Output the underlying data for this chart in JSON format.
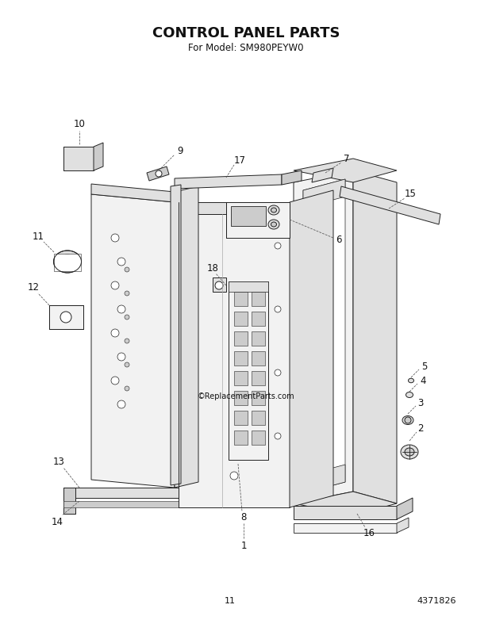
{
  "title": "CONTROL PANEL PARTS",
  "subtitle": "For Model: SM980PEYW0",
  "page_number": "11",
  "part_number": "4371826",
  "bg_color": "#ffffff",
  "title_fontsize": 13,
  "subtitle_fontsize": 8.5,
  "label_fontsize": 8.5,
  "lc": "#222222",
  "lw": 0.7
}
